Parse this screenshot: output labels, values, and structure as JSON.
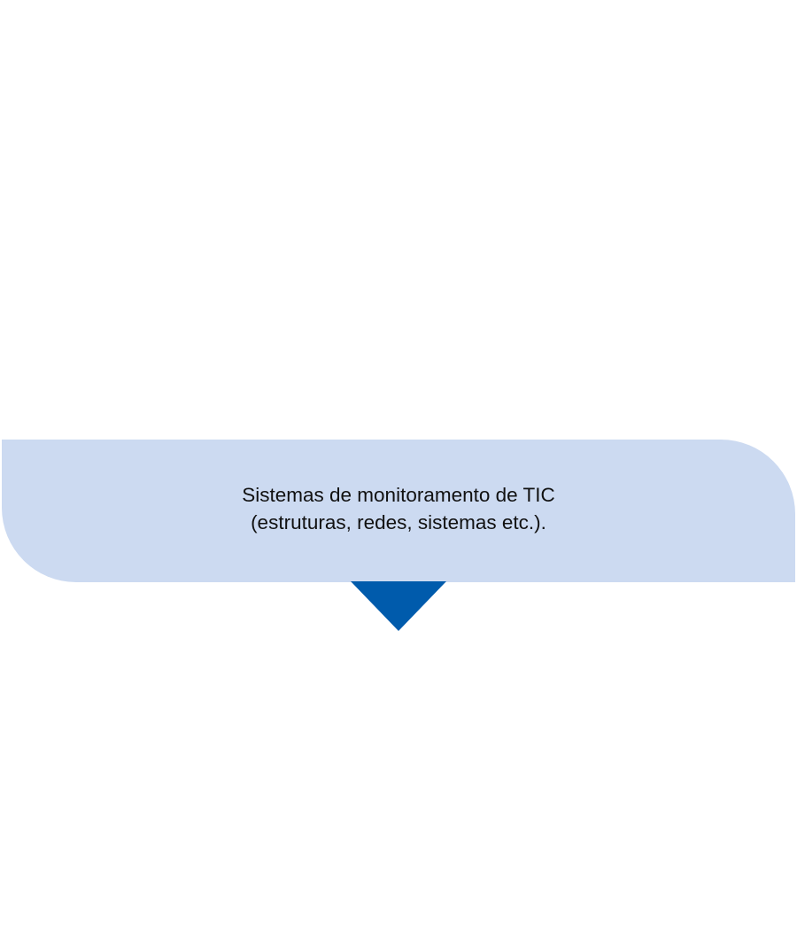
{
  "callout": {
    "line1": "Sistemas de monitoramento de TIC",
    "line2": "(estruturas, redes, sistemas etc.).",
    "box_color": "#CCDAF1",
    "pointer_color": "#005BAC",
    "pointer_icon": "triangle-down-icon"
  }
}
